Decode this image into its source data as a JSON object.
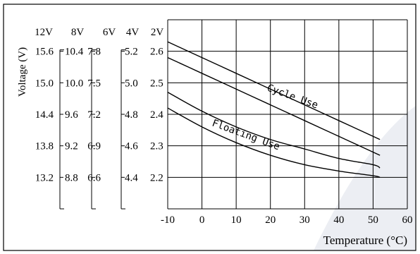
{
  "chart_data": {
    "type": "line",
    "title": "",
    "xlabel": "Temperature (°C)",
    "ylabel": "Voltage (V)",
    "xlim": [
      -10,
      60
    ],
    "ylim": [
      2.1,
      2.7
    ],
    "x_ticks": [
      "-10",
      "0",
      "10",
      "20",
      "30",
      "40",
      "50",
      "60"
    ],
    "voltage_scales": {
      "headers": [
        "12V",
        "8V",
        "6V",
        "4V",
        "2V"
      ],
      "rows": [
        [
          "15.6",
          "10.4",
          "7.8",
          "5.2",
          "2.6"
        ],
        [
          "15.0",
          "10.0",
          "7.5",
          "5.0",
          "2.5"
        ],
        [
          "14.4",
          "9.6",
          "7.2",
          "4.8",
          "2.4"
        ],
        [
          "13.8",
          "9.2",
          "6.9",
          "4.6",
          "2.3"
        ],
        [
          "13.2",
          "8.8",
          "6.6",
          "4.4",
          "2.2"
        ]
      ]
    },
    "band_labels": [
      "Cycle Use",
      "Floating Use"
    ],
    "series": [
      {
        "band": "Cycle Use",
        "edge": "upper",
        "x": [
          -10,
          0,
          10,
          20,
          30,
          40,
          50,
          52
        ],
        "y": [
          2.63,
          2.58,
          2.53,
          2.48,
          2.43,
          2.38,
          2.33,
          2.32
        ]
      },
      {
        "band": "Cycle Use",
        "edge": "lower",
        "x": [
          -10,
          0,
          10,
          20,
          30,
          40,
          50,
          52
        ],
        "y": [
          2.58,
          2.53,
          2.48,
          2.43,
          2.38,
          2.33,
          2.28,
          2.27
        ]
      },
      {
        "band": "Floating Use",
        "edge": "upper",
        "x": [
          -10,
          0,
          10,
          20,
          30,
          40,
          50,
          52
        ],
        "y": [
          2.47,
          2.41,
          2.36,
          2.32,
          2.29,
          2.26,
          2.24,
          2.23
        ]
      },
      {
        "band": "Floating Use",
        "edge": "lower",
        "x": [
          -10,
          0,
          10,
          20,
          30,
          40,
          50,
          52
        ],
        "y": [
          2.42,
          2.36,
          2.31,
          2.27,
          2.24,
          2.22,
          2.205,
          2.2
        ]
      }
    ],
    "grid": true,
    "legend": "none"
  },
  "colors": {
    "line": "#000000",
    "grid": "#000000",
    "watermark": "#eceef3",
    "background": "#ffffff"
  }
}
